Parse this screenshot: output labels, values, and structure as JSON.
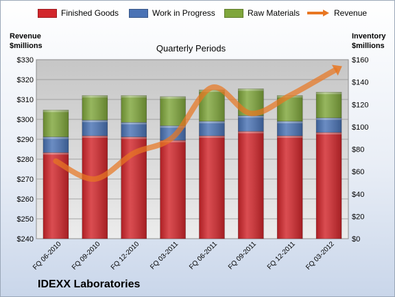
{
  "chart_data": {
    "type": "bar",
    "subtitle": "Quarterly Periods",
    "company": "IDEXX Laboratories",
    "y_left_label": [
      "Revenue",
      "$millions"
    ],
    "y_right_label": [
      "Inventory",
      "$millions"
    ],
    "y_left_range": [
      240,
      330
    ],
    "y_left_ticks": [
      "$240",
      "$250",
      "$260",
      "$270",
      "$280",
      "$290",
      "$300",
      "$310",
      "$320",
      "$330"
    ],
    "y_right_range": [
      0,
      160
    ],
    "y_right_ticks": [
      "$0",
      "$20",
      "$40",
      "$60",
      "$80",
      "$100",
      "$120",
      "$140",
      "$160"
    ],
    "categories": [
      "FQ 06-2010",
      "FQ 09-2010",
      "FQ 12-2010",
      "FQ 03-2011",
      "FQ 06-2011",
      "FQ 09-2011",
      "FQ 12-2011",
      "FQ 03-2012"
    ],
    "stacked_series": [
      {
        "name": "Finished Goods",
        "color": "#d2262b",
        "values": [
          77,
          92,
          91,
          88,
          92,
          96,
          92,
          95
        ]
      },
      {
        "name": "Work in Progress",
        "color": "#4a73b5",
        "values": [
          14,
          14,
          13,
          13,
          13,
          14,
          13,
          13
        ]
      },
      {
        "name": "Raw Materials",
        "color": "#7fa63b",
        "values": [
          24,
          22,
          24,
          26,
          28,
          24,
          23,
          23
        ]
      }
    ],
    "line_series": {
      "name": "Revenue",
      "color": "#e87722",
      "axis": "left",
      "values": [
        279,
        270,
        283,
        291,
        316,
        303,
        312,
        323
      ]
    },
    "grid": true,
    "legend": "top"
  }
}
